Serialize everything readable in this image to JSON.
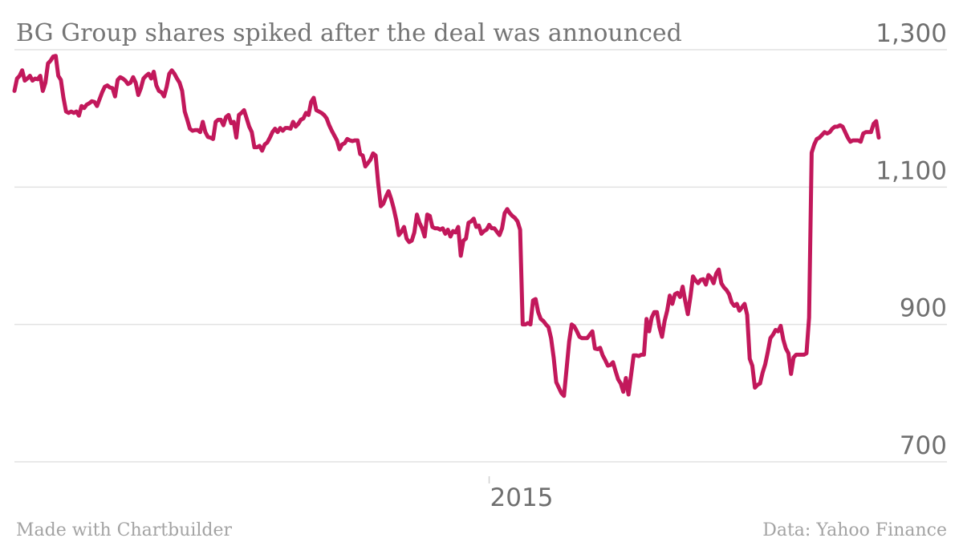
{
  "chart_data": {
    "type": "line",
    "title": "BG Group shares spiked after the deal was announced",
    "source": "Data: Yahoo Finance",
    "credit": "Made with Chartbuilder",
    "ylim": [
      700,
      1300
    ],
    "yticks": [
      700,
      900,
      1100,
      1300
    ],
    "ytick_labels": [
      "700",
      "900",
      "1,100",
      "1,300"
    ],
    "xticks": [
      {
        "index": 184,
        "label": "2015"
      }
    ],
    "grid": "horizontal",
    "legend": "none",
    "line_color": "#c2185b",
    "series": [
      {
        "values": [
          1240,
          1258,
          1262,
          1270,
          1255,
          1258,
          1262,
          1255,
          1258,
          1257,
          1262,
          1240,
          1252,
          1280,
          1284,
          1290,
          1291,
          1262,
          1256,
          1230,
          1210,
          1208,
          1210,
          1208,
          1210,
          1204,
          1218,
          1215,
          1220,
          1222,
          1225,
          1224,
          1218,
          1228,
          1238,
          1246,
          1248,
          1245,
          1244,
          1232,
          1256,
          1260,
          1258,
          1255,
          1250,
          1252,
          1260,
          1252,
          1234,
          1244,
          1258,
          1262,
          1265,
          1258,
          1268,
          1248,
          1240,
          1238,
          1232,
          1246,
          1265,
          1270,
          1265,
          1258,
          1252,
          1240,
          1210,
          1198,
          1185,
          1182,
          1183,
          1183,
          1180,
          1195,
          1180,
          1173,
          1172,
          1170,
          1195,
          1198,
          1198,
          1190,
          1202,
          1205,
          1193,
          1195,
          1172,
          1205,
          1208,
          1212,
          1200,
          1188,
          1180,
          1158,
          1158,
          1160,
          1153,
          1162,
          1165,
          1172,
          1180,
          1185,
          1180,
          1186,
          1182,
          1186,
          1186,
          1185,
          1195,
          1188,
          1192,
          1198,
          1200,
          1208,
          1205,
          1224,
          1230,
          1212,
          1210,
          1208,
          1205,
          1200,
          1190,
          1182,
          1175,
          1168,
          1155,
          1162,
          1164,
          1170,
          1168,
          1167,
          1168,
          1168,
          1148,
          1146,
          1130,
          1135,
          1140,
          1149,
          1146,
          1105,
          1072,
          1076,
          1086,
          1094,
          1083,
          1069,
          1052,
          1030,
          1035,
          1042,
          1025,
          1020,
          1022,
          1034,
          1060,
          1048,
          1040,
          1028,
          1060,
          1058,
          1042,
          1040,
          1040,
          1038,
          1040,
          1032,
          1038,
          1028,
          1036,
          1034,
          1042,
          1000,
          1022,
          1025,
          1048,
          1050,
          1054,
          1042,
          1044,
          1032,
          1036,
          1038,
          1045,
          1040,
          1040,
          1035,
          1030,
          1040,
          1062,
          1068,
          1062,
          1058,
          1055,
          1050,
          1038,
          900,
          900,
          902,
          900,
          935,
          937,
          918,
          908,
          905,
          900,
          896,
          880,
          852,
          816,
          808,
          800,
          796,
          835,
          875,
          900,
          897,
          890,
          882,
          880,
          880,
          880,
          885,
          890,
          865,
          864,
          866,
          855,
          848,
          840,
          841,
          845,
          832,
          820,
          814,
          802,
          822,
          798,
          826,
          855,
          855,
          854,
          856,
          856,
          908,
          890,
          910,
          918,
          918,
          896,
          882,
          905,
          920,
          942,
          930,
          944,
          946,
          940,
          955,
          934,
          915,
          940,
          970,
          964,
          960,
          965,
          966,
          958,
          972,
          968,
          960,
          974,
          980,
          960,
          954,
          950,
          944,
          932,
          927,
          930,
          920,
          925,
          930,
          914,
          850,
          840,
          808,
          812,
          814,
          830,
          842,
          860,
          880,
          885,
          892,
          890,
          898,
          878,
          865,
          858,
          828,
          852,
          856,
          856,
          856,
          856,
          858,
          910,
          1150,
          1162,
          1170,
          1172,
          1176,
          1180,
          1178,
          1180,
          1185,
          1188,
          1188,
          1190,
          1188,
          1180,
          1172,
          1166,
          1168,
          1168,
          1168,
          1166,
          1178,
          1180,
          1180,
          1180,
          1192,
          1196,
          1172
        ]
      }
    ]
  }
}
